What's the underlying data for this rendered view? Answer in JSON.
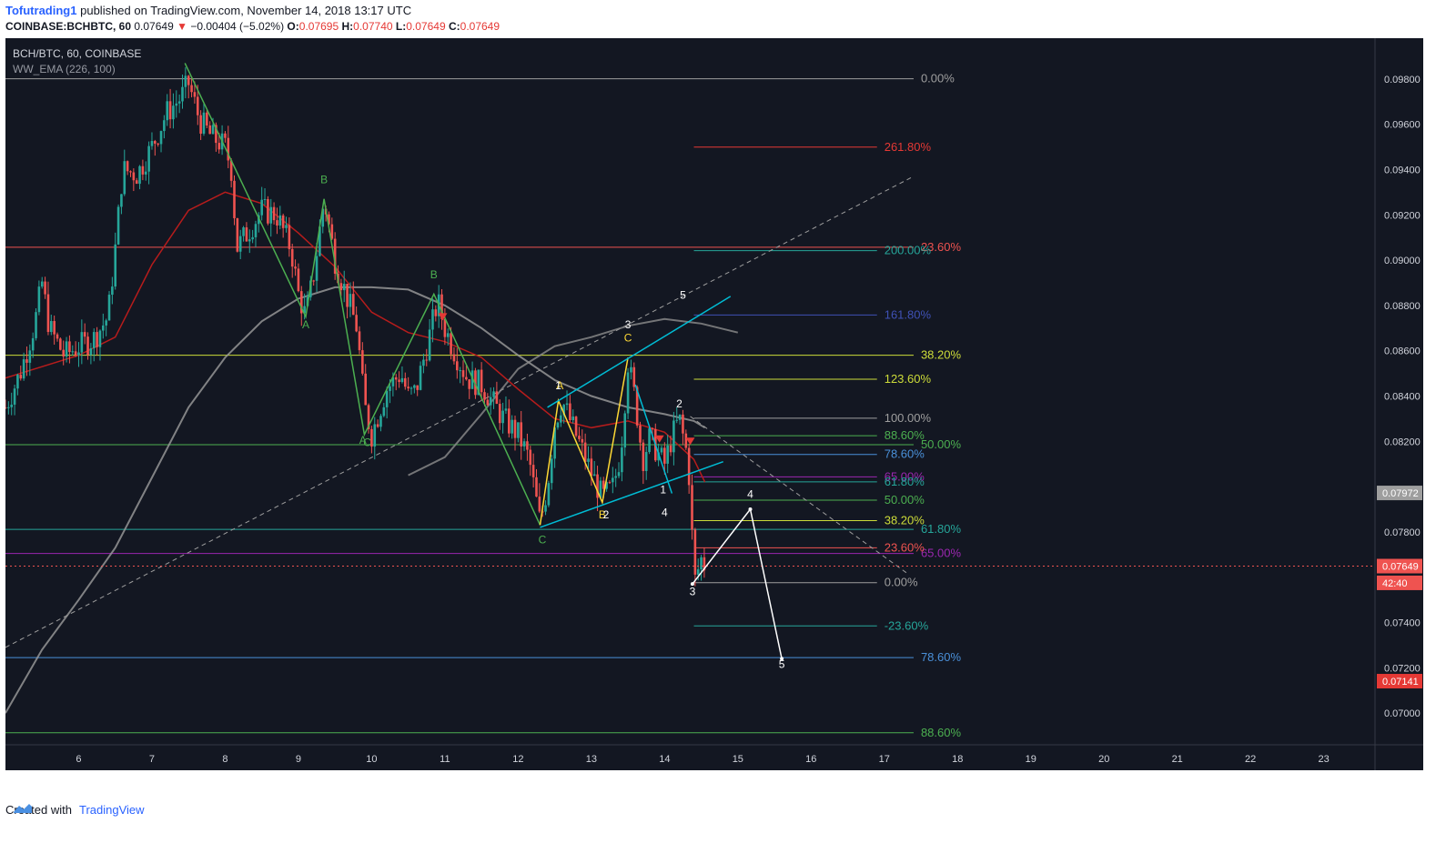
{
  "header": {
    "user": "Tofutrading1",
    "published_text": "published on TradingView.com, November 14, 2018 13:17 UTC",
    "symbol": "COINBASE:BCHBTC, 60",
    "last": "0.07649",
    "change": "−0.00404 (−5.02%)",
    "o_label": "O:",
    "o_value": "0.07695",
    "h_label": "H:",
    "h_value": "0.07740",
    "l_label": "L:",
    "l_value": "0.07649",
    "c_label": "C:",
    "c_value": "0.07649"
  },
  "legend": {
    "pair": "BCH/BTC, 60, COINBASE",
    "indicator": "WW_EMA (226, 100)"
  },
  "footer": {
    "created_with": "Created with",
    "brand": "TradingView"
  },
  "colors": {
    "background": "#131722",
    "up": "#26a69a",
    "down": "#ef5350",
    "wave_green": "#4caf50",
    "wave_yellow": "#fdd835",
    "channel_cyan": "#00bcd4",
    "projection": "#ffffff",
    "ema_fast": "#b71c1c",
    "ema_slow": "#9e9e9e"
  },
  "chart_data": {
    "type": "line",
    "title": "BCH/BTC, 60, COINBASE",
    "xlabel": "",
    "ylabel": "",
    "x_ticks": [
      "6",
      "7",
      "8",
      "9",
      "10",
      "11",
      "12",
      "13",
      "14",
      "15",
      "16",
      "17",
      "18",
      "19",
      "20",
      "21",
      "22",
      "23"
    ],
    "y_ticks": [
      "0.09800",
      "0.09600",
      "0.09400",
      "0.09200",
      "0.09000",
      "0.08800",
      "0.08600",
      "0.08400",
      "0.08200",
      "0.07800",
      "0.07400",
      "0.07200",
      "0.07000"
    ],
    "ylim": [
      0.0686,
      0.0998
    ],
    "x_range": [
      5.0,
      23.7
    ],
    "price_labels": [
      {
        "text": "0.07972",
        "value": 0.07972,
        "color": "#9e9e9e"
      },
      {
        "text": "0.07649",
        "value": 0.07649,
        "color": "#ef5350"
      },
      {
        "text": "42:40",
        "value": 0.07575,
        "color": "#ef5350"
      },
      {
        "text": "0.07141",
        "value": 0.07141,
        "color": "#e53935"
      }
    ],
    "last_price": 0.07649,
    "price_path": [
      [
        5.0,
        0.0835
      ],
      [
        5.2,
        0.085
      ],
      [
        5.4,
        0.0872
      ],
      [
        5.5,
        0.089
      ],
      [
        5.6,
        0.087
      ],
      [
        5.8,
        0.0858
      ],
      [
        6.0,
        0.0862
      ],
      [
        6.2,
        0.0865
      ],
      [
        6.4,
        0.0875
      ],
      [
        6.5,
        0.0905
      ],
      [
        6.6,
        0.094
      ],
      [
        6.8,
        0.0938
      ],
      [
        7.0,
        0.095
      ],
      [
        7.2,
        0.0965
      ],
      [
        7.4,
        0.0972
      ],
      [
        7.5,
        0.0978
      ],
      [
        7.65,
        0.0962
      ],
      [
        7.8,
        0.0955
      ],
      [
        8.0,
        0.095
      ],
      [
        8.1,
        0.0938
      ],
      [
        8.15,
        0.0905
      ],
      [
        8.3,
        0.0912
      ],
      [
        8.5,
        0.0922
      ],
      [
        8.7,
        0.092
      ],
      [
        8.9,
        0.0905
      ],
      [
        9.0,
        0.0885
      ],
      [
        9.1,
        0.0875
      ],
      [
        9.2,
        0.0892
      ],
      [
        9.35,
        0.0927
      ],
      [
        9.5,
        0.09
      ],
      [
        9.6,
        0.089
      ],
      [
        9.8,
        0.087
      ],
      [
        9.9,
        0.0836
      ],
      [
        10.0,
        0.0823
      ],
      [
        10.2,
        0.0843
      ],
      [
        10.4,
        0.085
      ],
      [
        10.5,
        0.084
      ],
      [
        10.6,
        0.0842
      ],
      [
        10.8,
        0.0868
      ],
      [
        10.9,
        0.0882
      ],
      [
        11.0,
        0.087
      ],
      [
        11.1,
        0.0862
      ],
      [
        11.3,
        0.0848
      ],
      [
        11.5,
        0.0845
      ],
      [
        11.6,
        0.084
      ],
      [
        11.8,
        0.083
      ],
      [
        12.0,
        0.0823
      ],
      [
        12.15,
        0.0812
      ],
      [
        12.3,
        0.0784
      ],
      [
        12.4,
        0.08
      ],
      [
        12.5,
        0.0828
      ],
      [
        12.6,
        0.0838
      ],
      [
        12.8,
        0.0822
      ],
      [
        13.0,
        0.0806
      ],
      [
        13.15,
        0.0795
      ],
      [
        13.3,
        0.08
      ],
      [
        13.4,
        0.0815
      ],
      [
        13.5,
        0.0855
      ],
      [
        13.6,
        0.0838
      ],
      [
        13.7,
        0.0812
      ],
      [
        13.8,
        0.0822
      ],
      [
        13.9,
        0.0815
      ],
      [
        14.0,
        0.081
      ],
      [
        14.1,
        0.0822
      ],
      [
        14.2,
        0.083
      ],
      [
        14.3,
        0.0815
      ],
      [
        14.35,
        0.08
      ],
      [
        14.4,
        0.0757
      ],
      [
        14.5,
        0.0768
      ],
      [
        14.55,
        0.0765
      ]
    ],
    "ema_fast": [
      [
        5.0,
        0.0848
      ],
      [
        6.0,
        0.0858
      ],
      [
        6.5,
        0.0866
      ],
      [
        7.0,
        0.0898
      ],
      [
        7.5,
        0.0922
      ],
      [
        8.0,
        0.093
      ],
      [
        8.5,
        0.0925
      ],
      [
        9.0,
        0.0912
      ],
      [
        9.5,
        0.0897
      ],
      [
        10.0,
        0.0877
      ],
      [
        10.5,
        0.0868
      ],
      [
        11.0,
        0.0864
      ],
      [
        11.5,
        0.0857
      ],
      [
        12.0,
        0.0843
      ],
      [
        12.5,
        0.083
      ],
      [
        13.0,
        0.0826
      ],
      [
        13.5,
        0.0829
      ],
      [
        14.0,
        0.0824
      ],
      [
        14.4,
        0.0812
      ],
      [
        14.55,
        0.0802
      ]
    ],
    "ema_slow": [
      [
        5.0,
        0.07
      ],
      [
        5.5,
        0.0728
      ],
      [
        6.0,
        0.075
      ],
      [
        6.5,
        0.0773
      ],
      [
        7.0,
        0.0804
      ],
      [
        7.5,
        0.0835
      ],
      [
        8.0,
        0.0857
      ],
      [
        8.5,
        0.0873
      ],
      [
        9.0,
        0.0883
      ],
      [
        9.5,
        0.0888
      ],
      [
        10.0,
        0.0888
      ],
      [
        10.5,
        0.0887
      ],
      [
        11.0,
        0.088
      ],
      [
        11.5,
        0.087
      ],
      [
        12.0,
        0.0858
      ],
      [
        12.5,
        0.0847
      ],
      [
        13.0,
        0.084
      ],
      [
        13.5,
        0.0835
      ],
      [
        14.0,
        0.0832
      ],
      [
        14.4,
        0.0829
      ],
      [
        14.55,
        0.0826
      ]
    ],
    "ema_overlay": [
      [
        10.5,
        0.0805
      ],
      [
        11.0,
        0.0813
      ],
      [
        11.5,
        0.0832
      ],
      [
        12.0,
        0.0852
      ],
      [
        12.5,
        0.0862
      ],
      [
        13.0,
        0.0866
      ],
      [
        13.5,
        0.0871
      ],
      [
        14.0,
        0.0874
      ],
      [
        14.5,
        0.0872
      ],
      [
        15.0,
        0.0868
      ]
    ],
    "diagonal_line": {
      "from": [
        5.0,
        0.0729
      ],
      "to": [
        17.4,
        0.0937
      ]
    },
    "diagonal_dashed": {
      "from": [
        14.35,
        0.0831
      ],
      "to": [
        17.3,
        0.0762
      ]
    },
    "hlines": [
      {
        "value": 0.09801,
        "label": "0.00%",
        "color": "#9e9e9e",
        "x_from": 5.0,
        "x_to": 17.4
      },
      {
        "value": 0.09057,
        "label": "23.60%",
        "color": "#ef5350",
        "x_from": 5.0,
        "x_to": 17.4
      },
      {
        "value": 0.0858,
        "label": "38.20%",
        "color": "#cddc39",
        "x_from": 5.0,
        "x_to": 17.4
      },
      {
        "value": 0.08185,
        "label": "50.00%",
        "color": "#4caf50",
        "x_from": 5.0,
        "x_to": 17.4
      },
      {
        "value": 0.07811,
        "label": "61.80%",
        "color": "#26a69a",
        "x_from": 5.0,
        "x_to": 17.4
      },
      {
        "value": 0.07705,
        "label": "65.00%",
        "color": "#9c27b0",
        "x_from": 5.0,
        "x_to": 17.4
      },
      {
        "value": 0.07245,
        "label": "78.60%",
        "color": "#4a90d9",
        "x_from": 5.0,
        "x_to": 17.4
      },
      {
        "value": 0.06913,
        "label": "88.60%",
        "color": "#4caf50",
        "x_from": 5.0,
        "x_to": 17.4
      }
    ],
    "hlines_short": [
      {
        "value": 0.09499,
        "label": "261.80%",
        "color": "#e53935"
      },
      {
        "value": 0.09042,
        "label": "200.00%",
        "color": "#26a69a"
      },
      {
        "value": 0.08758,
        "label": "161.80%",
        "color": "#3f51b5"
      },
      {
        "value": 0.08474,
        "label": "123.60%",
        "color": "#cddc39"
      },
      {
        "value": 0.08302,
        "label": "100.00%",
        "color": "#9e9e9e"
      },
      {
        "value": 0.08225,
        "label": "88.60%",
        "color": "#4caf50"
      },
      {
        "value": 0.08142,
        "label": "78.60%",
        "color": "#4a90d9"
      },
      {
        "value": 0.08043,
        "label": "65.00%",
        "color": "#9c27b0"
      },
      {
        "value": 0.08021,
        "label": "61.80%",
        "color": "#26a69a"
      },
      {
        "value": 0.0794,
        "label": "50.00%",
        "color": "#4caf50"
      },
      {
        "value": 0.0785,
        "label": "38.20%",
        "color": "#cddc39"
      },
      {
        "value": 0.0773,
        "label": "23.60%",
        "color": "#ef5350"
      },
      {
        "value": 0.07576,
        "label": "0.00%",
        "color": "#9e9e9e"
      },
      {
        "value": 0.07385,
        "label": "-23.60%",
        "color": "#26a69a"
      }
    ],
    "hlines_short_range": [
      14.4,
      16.9
    ],
    "wave_abc_green": {
      "points": [
        [
          7.45,
          0.0987
        ],
        [
          9.1,
          0.0875
        ],
        [
          9.35,
          0.0927
        ],
        [
          9.9,
          0.0823
        ],
        [
          10.85,
          0.0885
        ],
        [
          12.3,
          0.0783
        ]
      ],
      "labels": [
        {
          "text": "A",
          "x": 9.1,
          "y": 0.087
        },
        {
          "text": "B",
          "x": 9.35,
          "y": 0.0934
        },
        {
          "text": "A",
          "x": 9.88,
          "y": 0.0819
        },
        {
          "text": "C",
          "x": 9.94,
          "y": 0.0818
        },
        {
          "text": "B",
          "x": 10.85,
          "y": 0.0892
        },
        {
          "text": "C",
          "x": 12.33,
          "y": 0.0775
        }
      ]
    },
    "wave_abc_yellow": {
      "points": [
        [
          12.3,
          0.0783
        ],
        [
          12.55,
          0.0838
        ],
        [
          13.15,
          0.0793
        ],
        [
          13.5,
          0.0857
        ]
      ],
      "labels": [
        {
          "text": "A",
          "x": 12.57,
          "y": 0.0843
        },
        {
          "text": "B",
          "x": 13.15,
          "y": 0.0786
        },
        {
          "text": "C",
          "x": 13.5,
          "y": 0.0864
        }
      ]
    },
    "channel_lines": [
      {
        "from": [
          12.3,
          0.0782
        ],
        "to": [
          14.8,
          0.0811
        ]
      },
      {
        "from": [
          12.4,
          0.0835
        ],
        "to": [
          14.9,
          0.0884
        ]
      },
      {
        "from": [
          13.6,
          0.0845
        ],
        "to": [
          14.1,
          0.0797
        ]
      }
    ],
    "impulse_labels": [
      {
        "text": "1",
        "x": 12.55,
        "y": 0.0843
      },
      {
        "text": "2",
        "x": 13.2,
        "y": 0.0786
      },
      {
        "text": "3",
        "x": 13.5,
        "y": 0.087
      },
      {
        "text": "1",
        "x": 13.98,
        "y": 0.0797
      },
      {
        "text": "2",
        "x": 14.2,
        "y": 0.0835
      },
      {
        "text": "4",
        "x": 14.0,
        "y": 0.0787
      },
      {
        "text": "5",
        "x": 14.25,
        "y": 0.0883
      },
      {
        "text": "3",
        "x": 14.38,
        "y": 0.0752
      },
      {
        "text": "4",
        "x": 15.17,
        "y": 0.0795
      },
      {
        "text": "5",
        "x": 15.6,
        "y": 0.072
      }
    ],
    "projection_path": [
      [
        14.38,
        0.0757
      ],
      [
        15.17,
        0.079
      ],
      [
        15.6,
        0.0724
      ]
    ],
    "signal_markers": [
      {
        "x": 10.97,
        "y": 0.0875
      },
      {
        "x": 13.93,
        "y": 0.0821
      },
      {
        "x": 14.35,
        "y": 0.082
      }
    ]
  }
}
